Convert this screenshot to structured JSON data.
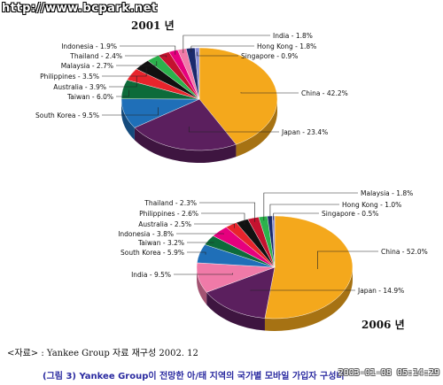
{
  "watermark": "http://www.bcpark.net",
  "source": "<자료> : Yankee Group 자료 재구성 2002. 12",
  "caption": "(그림 3) Yankee Group이 전망한 아/태 지역의 국가별 모바일 가입자 구성비",
  "timestamp": "2003-01-08 05:14:29",
  "colors": {
    "China": "#f4a81c",
    "Japan": "#5b1f5e",
    "South Korea": "#1f6fb8",
    "Taiwan": "#0d6b3a",
    "Australia": "#e8242c",
    "Philippines": "#111111",
    "Malaysia": "#2bb24c",
    "Thailand": "#c4122f",
    "Indonesia": "#e6007e",
    "India": "#f07aa8",
    "Hong Kong": "#1a2a6c",
    "Singapore": "#8a8fd8"
  },
  "chart_data": [
    {
      "type": "pie",
      "title": "2001 년",
      "slices": [
        {
          "name": "China",
          "label": "China - 42.2%",
          "value": 42.2
        },
        {
          "name": "Japan",
          "label": "Japan - 23.4%",
          "value": 23.4
        },
        {
          "name": "South Korea",
          "label": "South Korea - 9.5%",
          "value": 9.5
        },
        {
          "name": "Taiwan",
          "label": "Taiwan - 6.0%",
          "value": 6.0
        },
        {
          "name": "Australia",
          "label": "Australia - 3.9%",
          "value": 3.9
        },
        {
          "name": "Philippines",
          "label": "Philippines - 3.5%",
          "value": 3.5
        },
        {
          "name": "Malaysia",
          "label": "Malaysia - 2.7%",
          "value": 2.7
        },
        {
          "name": "Thailand",
          "label": "Thailand - 2.4%",
          "value": 2.4
        },
        {
          "name": "Indonesia",
          "label": "Indonesia - 1.9%",
          "value": 1.9
        },
        {
          "name": "India",
          "label": "India - 1.8%",
          "value": 1.8
        },
        {
          "name": "Hong Kong",
          "label": "Hong Kong - 1.8%",
          "value": 1.8
        },
        {
          "name": "Singapore",
          "label": "Singapore - 0.9%",
          "value": 0.9
        }
      ]
    },
    {
      "type": "pie",
      "title": "2006 년",
      "slices": [
        {
          "name": "China",
          "label": "China - 52.0%",
          "value": 52.0
        },
        {
          "name": "Japan",
          "label": "Japan - 14.9%",
          "value": 14.9
        },
        {
          "name": "India",
          "label": "India - 9.5%",
          "value": 9.5
        },
        {
          "name": "South Korea",
          "label": "South Korea - 5.9%",
          "value": 5.9
        },
        {
          "name": "Taiwan",
          "label": "Taiwan - 3.2%",
          "value": 3.2
        },
        {
          "name": "Indonesia",
          "label": "Indonesia - 3.8%",
          "value": 3.8
        },
        {
          "name": "Australia",
          "label": "Australia - 2.5%",
          "value": 2.5
        },
        {
          "name": "Philippines",
          "label": "Philippines - 2.6%",
          "value": 2.6
        },
        {
          "name": "Thailand",
          "label": "Thailand - 2.3%",
          "value": 2.3
        },
        {
          "name": "Malaysia",
          "label": "Malaysia - 1.8%",
          "value": 1.8
        },
        {
          "name": "Hong Kong",
          "label": "Hong Kong - 1.0%",
          "value": 1.0
        },
        {
          "name": "Singapore",
          "label": "Singapore - 0.5%",
          "value": 0.5
        }
      ]
    }
  ]
}
